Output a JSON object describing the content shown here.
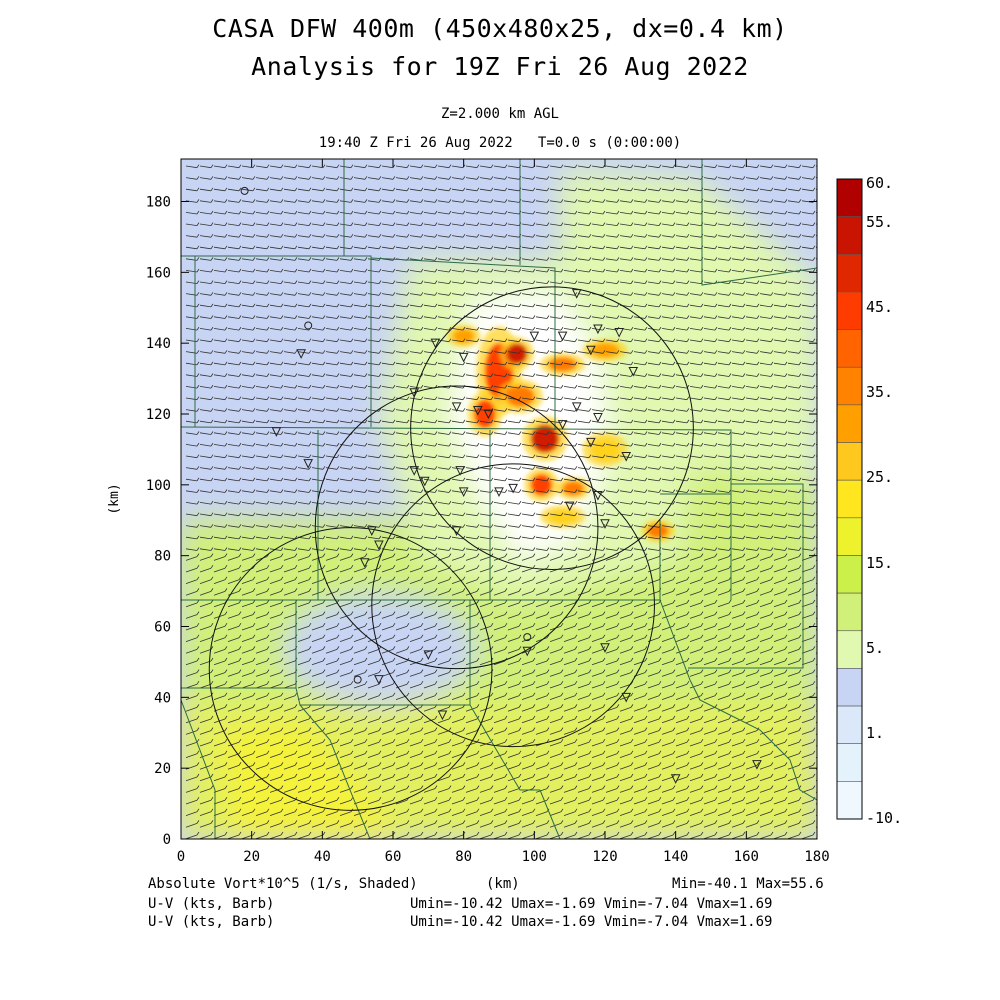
{
  "header": {
    "title_line1": "CASA DFW 400m (450x480x25, dx=0.4 km)",
    "title_line2": "Analysis for 19Z Fri 26 Aug 2022",
    "level": "Z=2.000 km AGL",
    "time": "19:40 Z Fri 26 Aug 2022   T=0.0 s (0:00:00)"
  },
  "footer": {
    "field_label": "Absolute Vort*10^5 (1/s, Shaded)",
    "xunit_label": "(km)",
    "minmax": "Min=-40.1 Max=55.6",
    "wind1_label": "U-V (kts, Barb)",
    "wind1_stats": "Umin=-10.42 Umax=-1.69 Vmin=-7.04 Vmax=1.69",
    "wind2_label": "U-V (kts, Barb)",
    "wind2_stats": "Umin=-10.42 Umax=-1.69 Vmin=-7.04 Vmax=1.69"
  },
  "chart_data": {
    "type": "heatmap",
    "xlabel": "",
    "ylabel": "(km)",
    "xlim": [
      0,
      180
    ],
    "ylim": [
      0,
      192
    ],
    "xticks": [
      0,
      20,
      40,
      60,
      80,
      100,
      120,
      140,
      160,
      180
    ],
    "yticks": [
      0,
      20,
      40,
      60,
      80,
      100,
      120,
      140,
      160,
      180
    ],
    "colorbar": {
      "labels": [
        "60.",
        "55.",
        "45.",
        "35.",
        "25.",
        "15.",
        "5.",
        "1.",
        "-10."
      ],
      "colors": [
        "#b00000",
        "#c81400",
        "#e02800",
        "#ff3c00",
        "#ff6400",
        "#ff8200",
        "#ffa000",
        "#ffc81e",
        "#ffe61e",
        "#eef22c",
        "#ccf04a",
        "#d0f07a",
        "#e0f8b0",
        "#c8d4f4",
        "#dae8fa",
        "#e4f2fc",
        "#eef8fe"
      ]
    },
    "radar_rings": [
      {
        "x": 105,
        "y": 116,
        "r": 40
      },
      {
        "x": 78,
        "y": 88,
        "r": 40
      },
      {
        "x": 94,
        "y": 66,
        "r": 40
      },
      {
        "x": 48,
        "y": 48,
        "r": 40
      }
    ],
    "station_triangles": [
      [
        112,
        154
      ],
      [
        100,
        142
      ],
      [
        108,
        142
      ],
      [
        118,
        144
      ],
      [
        124,
        143
      ],
      [
        72,
        140
      ],
      [
        80,
        136
      ],
      [
        116,
        138
      ],
      [
        128,
        132
      ],
      [
        66,
        126
      ],
      [
        84,
        121
      ],
      [
        78,
        122
      ],
      [
        87,
        120
      ],
      [
        112,
        122
      ],
      [
        118,
        119
      ],
      [
        108,
        117
      ],
      [
        116,
        112
      ],
      [
        126,
        108
      ],
      [
        79,
        104
      ],
      [
        66,
        104
      ],
      [
        69,
        101
      ],
      [
        80,
        98
      ],
      [
        90,
        98
      ],
      [
        94,
        99
      ],
      [
        118,
        97
      ],
      [
        110,
        94
      ],
      [
        120,
        89
      ],
      [
        78,
        87
      ],
      [
        54,
        87
      ],
      [
        56,
        83
      ],
      [
        52,
        78
      ],
      [
        70,
        52
      ],
      [
        98,
        53
      ],
      [
        120,
        54
      ],
      [
        56,
        45
      ],
      [
        74,
        35
      ],
      [
        126,
        40
      ],
      [
        140,
        17
      ],
      [
        163,
        21
      ],
      [
        27,
        115
      ],
      [
        36,
        106
      ],
      [
        34,
        137
      ]
    ],
    "station_circles": [
      [
        18,
        183
      ],
      [
        36,
        145
      ],
      [
        98,
        57
      ],
      [
        50,
        45
      ]
    ],
    "shaded_blobs": [
      {
        "x": 90,
        "y": 132,
        "rx": 4,
        "ry": 8,
        "v": 40
      },
      {
        "x": 95,
        "y": 137,
        "rx": 3,
        "ry": 3,
        "v": 48
      },
      {
        "x": 103,
        "y": 113,
        "rx": 4,
        "ry": 4,
        "v": 48
      },
      {
        "x": 86,
        "y": 120,
        "rx": 3,
        "ry": 4,
        "v": 38
      },
      {
        "x": 102,
        "y": 100,
        "rx": 3,
        "ry": 3,
        "v": 40
      },
      {
        "x": 111,
        "y": 99,
        "rx": 3,
        "ry": 2,
        "v": 35
      },
      {
        "x": 108,
        "y": 134,
        "rx": 4,
        "ry": 2,
        "v": 30
      },
      {
        "x": 120,
        "y": 138,
        "rx": 4,
        "ry": 2,
        "v": 25
      },
      {
        "x": 80,
        "y": 142,
        "rx": 3,
        "ry": 2,
        "v": 25
      },
      {
        "x": 96,
        "y": 125,
        "rx": 4,
        "ry": 3,
        "v": 30
      },
      {
        "x": 120,
        "y": 110,
        "rx": 4,
        "ry": 3,
        "v": 20
      },
      {
        "x": 135,
        "y": 87,
        "rx": 3,
        "ry": 2,
        "v": 30
      },
      {
        "x": 108,
        "y": 91,
        "rx": 4,
        "ry": 2,
        "v": 20
      }
    ]
  }
}
